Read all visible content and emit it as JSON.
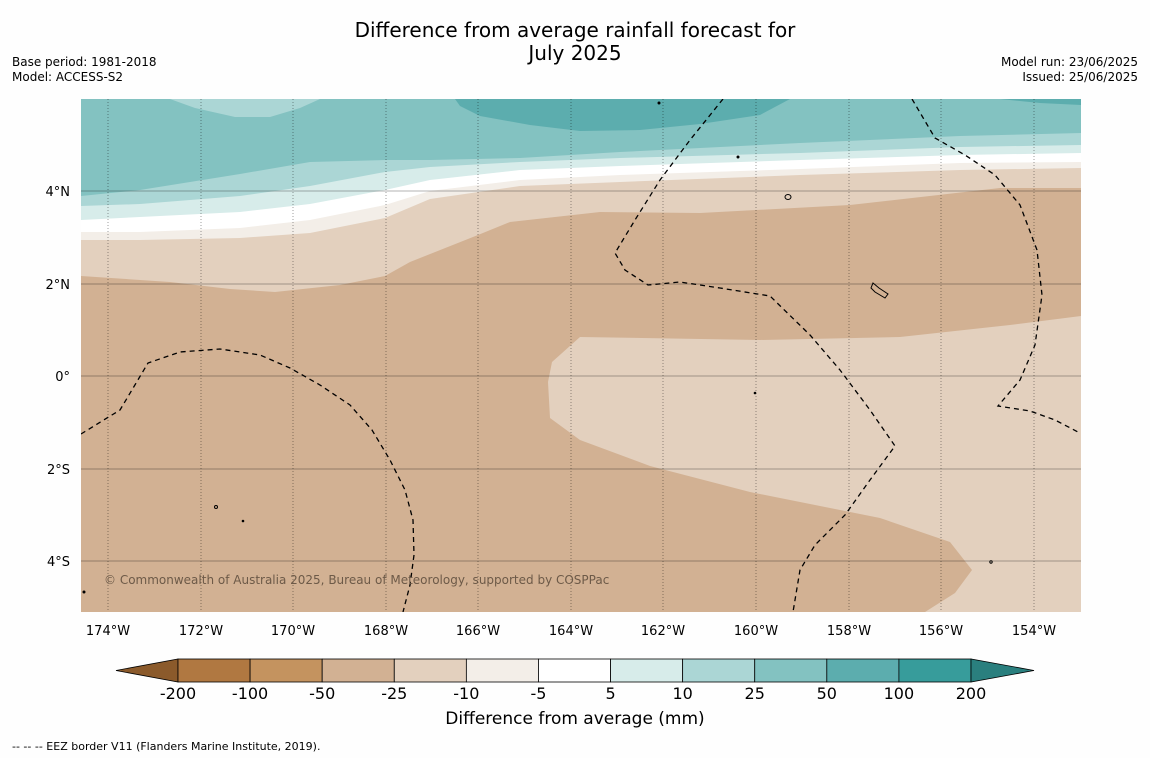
{
  "title": {
    "line1": "Difference from average rainfall forecast for",
    "line2": "July 2025"
  },
  "meta": {
    "base_period": "Base period: 1981-2018",
    "model": "Model: ACCESS-S2",
    "model_run": "Model run: 23/06/2025",
    "issued": "Issued: 25/06/2025"
  },
  "map": {
    "lon_ticks": [
      "174°W",
      "172°W",
      "170°W",
      "168°W",
      "166°W",
      "164°W",
      "162°W",
      "160°W",
      "158°W",
      "156°W",
      "154°W"
    ],
    "lat_ticks": [
      "4°N",
      "2°N",
      "0°",
      "2°S",
      "4°S"
    ],
    "copyright": "© Commonwealth of Australia 2025, Bureau of Meteorology, supported by COSPPac"
  },
  "colorbar": {
    "labels": [
      "-200",
      "-100",
      "-50",
      "-25",
      "-10",
      "-5",
      "5",
      "10",
      "25",
      "50",
      "100",
      "200"
    ],
    "colors": [
      "#8b5a2b",
      "#b07841",
      "#c4935f",
      "#d2b193",
      "#e3d0be",
      "#f3eee8",
      "#ffffff",
      "#d7ecea",
      "#abd6d5",
      "#83c2c1",
      "#5cadae",
      "#379c9b",
      "#2a7f7e"
    ],
    "title": "Difference from average (mm)"
  },
  "footer": "--  --  -- EEZ border V11 (Flanders Marine Institute, 2019)."
}
